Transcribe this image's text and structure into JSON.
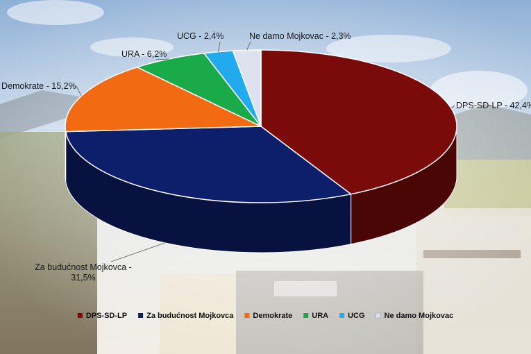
{
  "chart_data": {
    "type": "pie",
    "title": "",
    "slices": [
      {
        "name": "DPS-SD-LP",
        "value": 42.4,
        "label": "DPS-SD-LP - 42,4%",
        "color": "#7b0a0a",
        "side": "#4a0505"
      },
      {
        "name": "Za budućnost Mojkovca",
        "value": 31.5,
        "label": "Za budućnost Mojkovca - 31,5%",
        "color": "#0d1e6b",
        "side": "#071241"
      },
      {
        "name": "Demokrate",
        "value": 15.2,
        "label": "Demokrate - 15,2%",
        "color": "#f26b12",
        "side": "#a8460a"
      },
      {
        "name": "URA",
        "value": 6.2,
        "label": "URA - 6,2%",
        "color": "#1aaa4a",
        "side": "#0f7030"
      },
      {
        "name": "UCG",
        "value": 2.4,
        "label": "UCG - 2,4%",
        "color": "#22aaee",
        "side": "#1577a8"
      },
      {
        "name": "Ne damo Mojkovac",
        "value": 2.3,
        "label": "Ne damo Mojkovac - 2,3%",
        "color": "#dde2ee",
        "side": "#a9afbd"
      }
    ],
    "legend_position": "bottom",
    "legend": [
      "DPS-SD-LP",
      "Za budućnost Mojkovca",
      "Demokrate",
      "URA",
      "UCG",
      "Ne damo Mojkovac"
    ]
  }
}
